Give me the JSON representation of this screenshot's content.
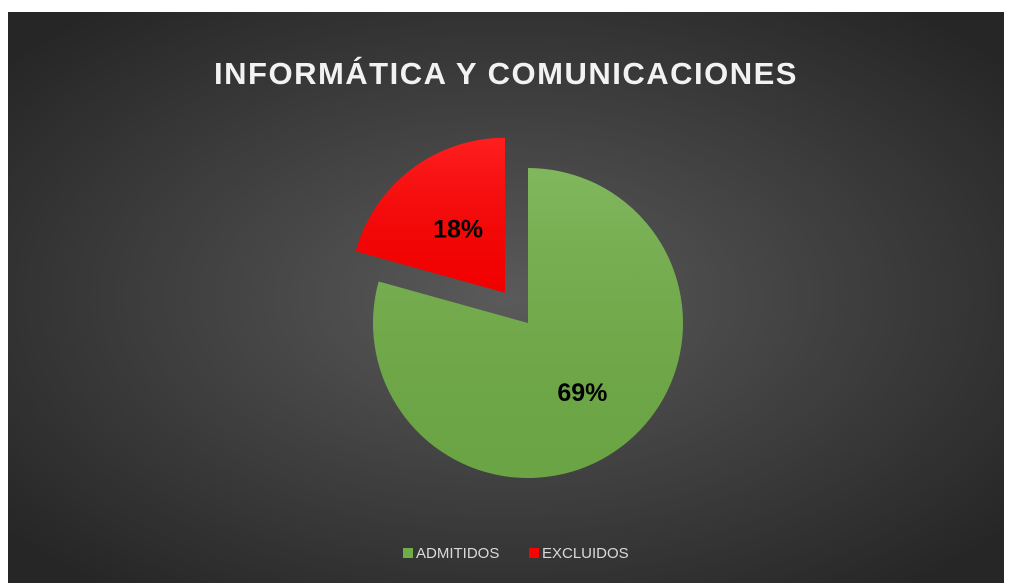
{
  "chart_data": {
    "type": "pie",
    "title": "INFORMÁTICA Y COMUNICACIONES",
    "categories": [
      "ADMITIDOS",
      "EXCLUIDOS"
    ],
    "values": [
      69,
      18
    ],
    "value_labels": [
      "69%",
      "18%"
    ],
    "colors": [
      "#70ad47",
      "#ff0000"
    ],
    "exploded": [
      false,
      true
    ],
    "legend": "bottom"
  }
}
